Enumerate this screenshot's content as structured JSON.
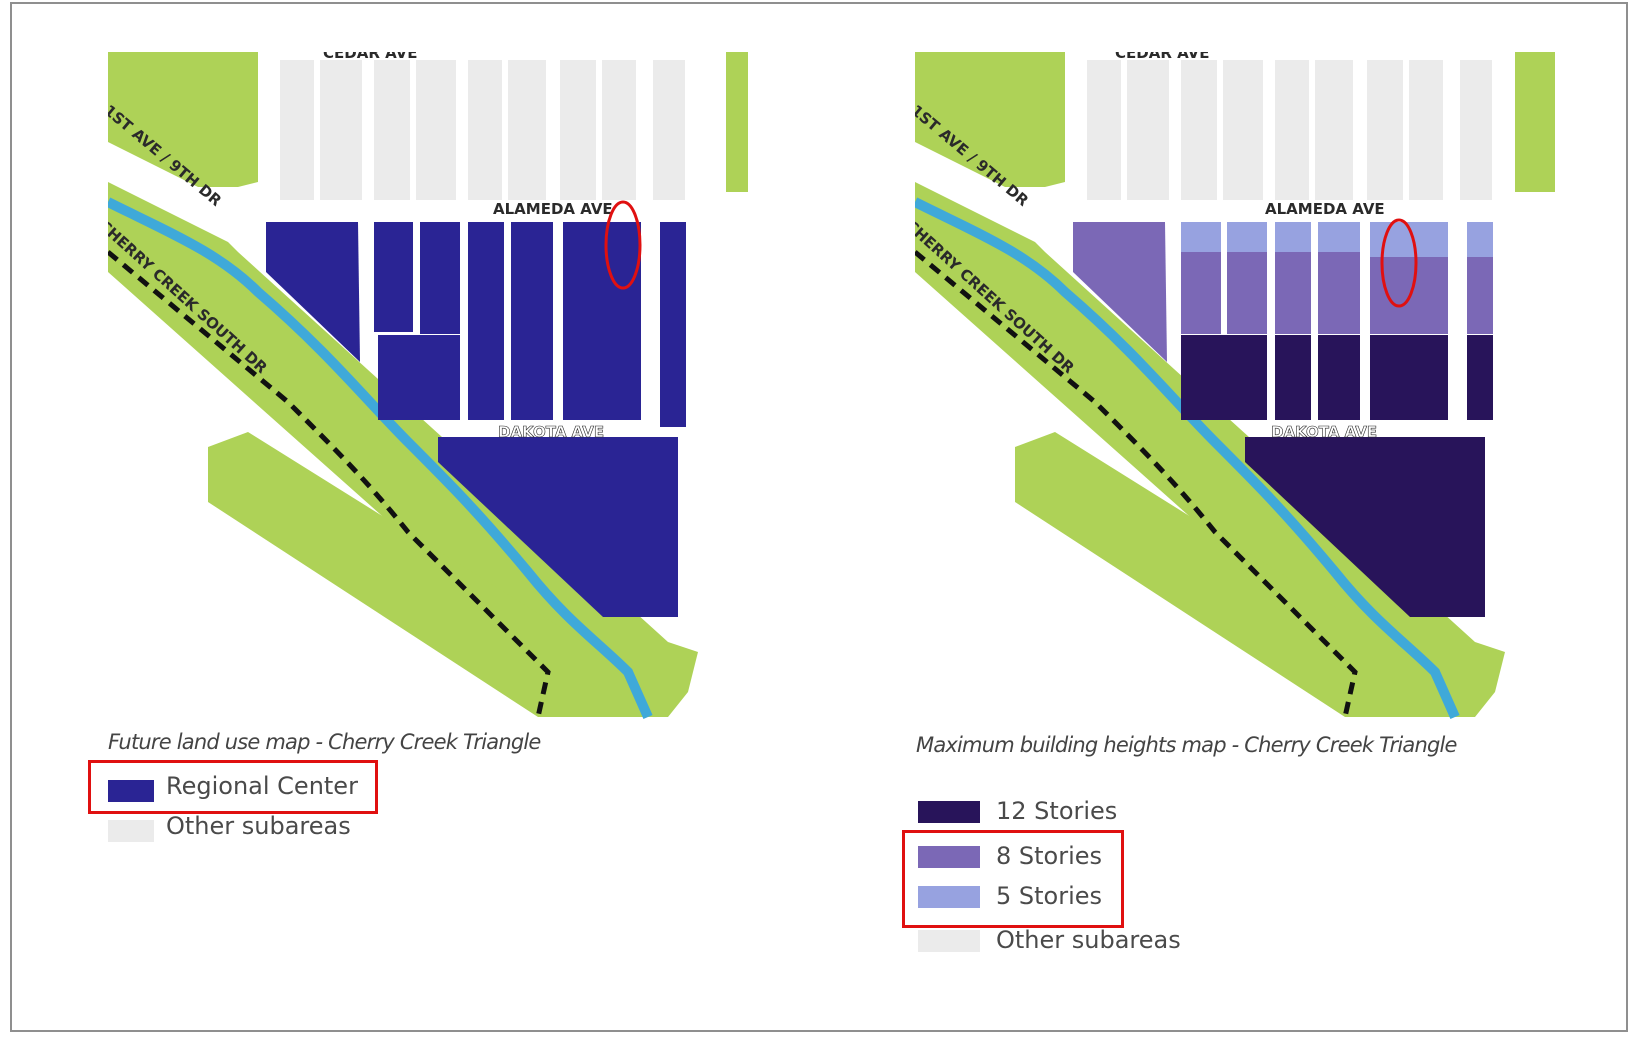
{
  "left_map": {
    "caption": "Future land use map - Cherry Creek Triangle",
    "legend": [
      {
        "label": "Regional Center",
        "color": "#2a2494"
      },
      {
        "label": "Other subareas",
        "color": "#ebebeb"
      }
    ]
  },
  "right_map": {
    "caption": "Maximum building heights map - Cherry Creek Triangle",
    "legend": [
      {
        "label": "12 Stories",
        "color": "#28145a"
      },
      {
        "label": "8 Stories",
        "color": "#7b68b6"
      },
      {
        "label": "5 Stories",
        "color": "#97a2e0"
      },
      {
        "label": "Other subareas",
        "color": "#ebebeb"
      }
    ]
  },
  "streets": {
    "cedar": "CEDAR AVE",
    "alameda": "ALAMEDA AVE",
    "dakota": "DAKOTA AVE",
    "cherry_creek": "CHERRY CREEK SOUTH DR",
    "ninth": "1ST AVE / 9TH DR"
  },
  "colors": {
    "park_green": "#aed257",
    "creek_blue": "#3fa9d9",
    "other_subareas": "#ebebeb",
    "regional_center": "#2a2494",
    "stories_12": "#28145a",
    "stories_8": "#7b68b6",
    "stories_5": "#97a2e0",
    "highlight_red": "#e01010"
  }
}
